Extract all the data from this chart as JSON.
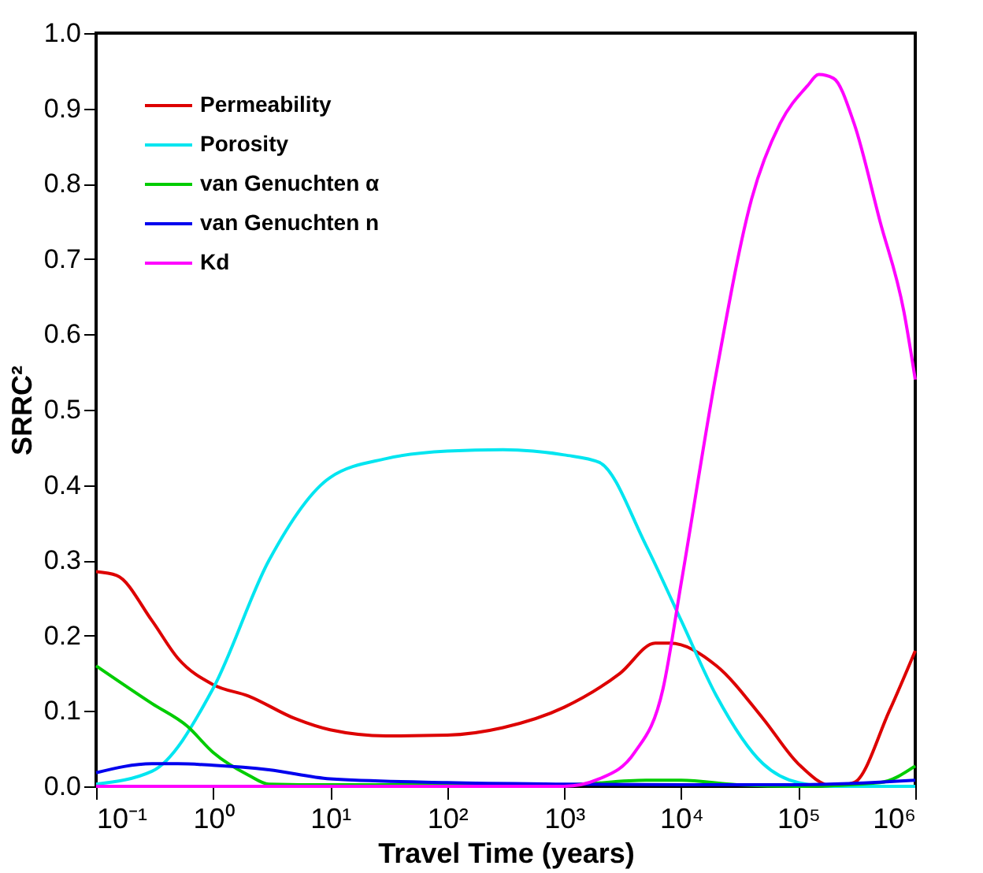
{
  "chart_data": {
    "type": "line",
    "xlabel": "Travel Time (years)",
    "ylabel": "SRRC²",
    "log": "x",
    "legend": "top left",
    "line_style": "solid",
    "xlim": [
      0.1,
      1000000
    ],
    "xticks": [
      {
        "value": 0.1,
        "label": "10⁻¹"
      },
      {
        "value": 1,
        "label": "10⁰"
      },
      {
        "value": 10,
        "label": "10¹"
      },
      {
        "value": 100,
        "label": "10²"
      },
      {
        "value": 1000,
        "label": "10³"
      },
      {
        "value": 10000,
        "label": "10⁴"
      },
      {
        "value": 100000,
        "label": "10⁵"
      },
      {
        "value": 1000000,
        "label": "10⁶"
      }
    ],
    "ylim": [
      0,
      1
    ],
    "yticks": [
      {
        "value": 0,
        "label": "0.0"
      },
      0.1,
      0.2,
      0.3,
      0.4,
      0.5,
      0.6,
      0.7,
      0.8,
      0.9,
      {
        "value": 1,
        "label": "1.0"
      }
    ],
    "series": [
      {
        "name": "Permeability",
        "color": "#dd0000",
        "x": [
          0.1,
          0.15,
          0.3,
          0.5,
          1,
          2,
          5,
          10,
          30,
          100,
          300,
          1000,
          3000,
          6000,
          8000,
          20000,
          50000,
          100000,
          200000,
          300000,
          600000,
          1000000
        ],
        "values": [
          0.285,
          0.28,
          0.22,
          0.17,
          0.135,
          0.12,
          0.09,
          0.075,
          0.067,
          0.068,
          0.078,
          0.105,
          0.15,
          0.19,
          0.19,
          0.16,
          0.09,
          0.03,
          0.0,
          0.005,
          0.1,
          0.18
        ]
      },
      {
        "name": "Porosity",
        "color": "#00e5f0",
        "x": [
          0.1,
          0.3,
          1,
          3,
          10,
          30,
          100,
          300,
          1000,
          2000,
          5000,
          10000,
          20000,
          50000,
          100000,
          200000,
          1000000
        ],
        "values": [
          0.003,
          0.02,
          0.13,
          0.3,
          0.41,
          0.435,
          0.445,
          0.447,
          0.44,
          0.43,
          0.32,
          0.22,
          0.12,
          0.03,
          0.005,
          0.0,
          0.0
        ]
      },
      {
        "name": "van Genuchten α",
        "color": "#00cc00",
        "x": [
          0.1,
          0.3,
          0.6,
          1,
          2,
          3,
          10,
          1000,
          5000,
          10000,
          30000,
          100000,
          500000,
          1000000
        ],
        "values": [
          0.16,
          0.11,
          0.08,
          0.045,
          0.015,
          0.003,
          0.002,
          0.002,
          0.008,
          0.008,
          0.002,
          0.0,
          0.005,
          0.027
        ]
      },
      {
        "name": "van Genuchten n",
        "color": "#0000ee",
        "x": [
          0.1,
          0.3,
          0.5,
          1,
          3,
          10,
          100,
          1000,
          10000,
          100000,
          1000000
        ],
        "values": [
          0.018,
          0.03,
          0.03,
          0.028,
          0.022,
          0.01,
          0.005,
          0.003,
          0.002,
          0.002,
          0.008
        ]
      },
      {
        "name": "Kd",
        "color": "#ff00ff",
        "x": [
          0.1,
          1000,
          2000,
          4000,
          7000,
          10000,
          20000,
          40000,
          70000,
          120000,
          150000,
          200000,
          300000,
          500000,
          800000,
          1000000
        ],
        "values": [
          0.0,
          0.0,
          0.01,
          0.045,
          0.13,
          0.27,
          0.55,
          0.78,
          0.88,
          0.93,
          0.945,
          0.94,
          0.88,
          0.75,
          0.63,
          0.54
        ]
      }
    ]
  }
}
